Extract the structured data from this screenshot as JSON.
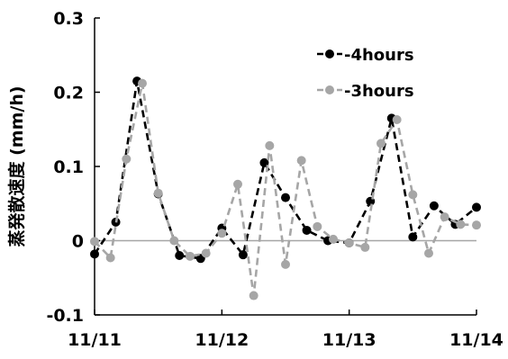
{
  "chart_data": {
    "type": "line",
    "title": "",
    "xlabel": "",
    "ylabel": "蒸発散速度 (mm/h)",
    "x_ticks": [
      "11/11",
      "11/12",
      "11/13",
      "11/14"
    ],
    "xlim": [
      0,
      3
    ],
    "ylim": [
      -0.1,
      0.3
    ],
    "y_ticks": [
      "-0.1",
      "0",
      "0.1",
      "0.2",
      "0.3"
    ],
    "y_tick_values": [
      -0.1,
      0,
      0.1,
      0.2,
      0.3
    ],
    "zero_line": true,
    "grid": false,
    "legend_position": "top-right",
    "series": [
      {
        "name": "4hours",
        "color": "#000000",
        "dash": "dashed",
        "x": [
          0.0,
          0.1667,
          0.3333,
          0.5,
          0.6667,
          0.8333,
          1.0,
          1.1667,
          1.3333,
          1.5,
          1.6667,
          1.8333,
          2.0,
          2.1667,
          2.3333,
          2.5,
          2.6667,
          2.8333,
          3.0
        ],
        "y": [
          -0.018,
          0.025,
          0.215,
          0.063,
          -0.02,
          -0.024,
          0.017,
          -0.019,
          0.105,
          0.058,
          0.014,
          0.0,
          -0.003,
          0.053,
          0.165,
          0.005,
          0.047,
          0.022,
          0.045
        ]
      },
      {
        "name": "3hours",
        "color": "#a6a6a6",
        "dash": "dashed",
        "x": [
          0.0,
          0.125,
          0.25,
          0.375,
          0.5,
          0.625,
          0.75,
          0.875,
          1.0,
          1.125,
          1.25,
          1.375,
          1.5,
          1.625,
          1.75,
          1.875,
          2.0,
          2.125,
          2.25,
          2.375,
          2.5,
          2.625,
          2.75,
          2.875,
          3.0
        ],
        "y": [
          -0.001,
          -0.023,
          0.11,
          0.212,
          0.064,
          0.0,
          -0.021,
          -0.017,
          0.01,
          0.076,
          -0.074,
          0.128,
          -0.032,
          0.108,
          0.019,
          0.002,
          -0.003,
          -0.009,
          0.131,
          0.163,
          0.062,
          -0.017,
          0.032,
          0.022,
          0.021
        ]
      }
    ]
  }
}
